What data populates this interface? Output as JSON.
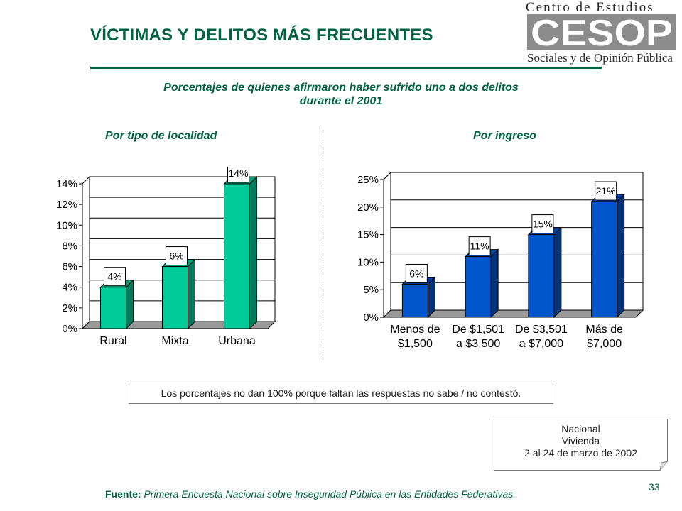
{
  "header": {
    "title": "VÍCTIMAS Y DELITOS MÁS FRECUENTES",
    "logo_top": "Centro de Estudios",
    "logo_mark": "CESOP",
    "logo_bottom": "Sociales y de Opinión Pública"
  },
  "subtitle_line1": "Porcentajes de quienes afirmaron haber sufrido uno a dos delitos",
  "subtitle_line2": "durante el 2001",
  "left_section_title": "Por tipo de localidad",
  "right_section_title": "Por ingreso",
  "chart_data": [
    {
      "type": "bar",
      "categories": [
        "Rural",
        "Mixta",
        "Urbana"
      ],
      "values": [
        4,
        6,
        14
      ],
      "data_labels": [
        "4%",
        "6%",
        "14%"
      ],
      "yticks": [
        "0%",
        "2%",
        "4%",
        "6%",
        "8%",
        "10%",
        "12%",
        "14%"
      ],
      "ylim": [
        0,
        14
      ],
      "grid": true,
      "color": "#00cc99"
    },
    {
      "type": "bar",
      "categories": [
        [
          "Menos de",
          "$1,500"
        ],
        [
          "De $1,501",
          "a $3,500"
        ],
        [
          "De $3,501",
          "a $7,000"
        ],
        [
          "Más de",
          "$7,000"
        ]
      ],
      "values": [
        6,
        11,
        15,
        21
      ],
      "data_labels": [
        "6%",
        "11%",
        "15%",
        "21%"
      ],
      "yticks": [
        "0%",
        "5%",
        "10%",
        "15%",
        "20%",
        "25%"
      ],
      "ylim": [
        0,
        25
      ],
      "grid": true,
      "color": "#0055cc"
    }
  ],
  "note": "Los porcentajes no dan 100% porque faltan las respuestas no sabe / no contestó.",
  "survey": {
    "line1": "Nacional",
    "line2": "Vivienda",
    "line3": "2 al 24 de marzo de 2002"
  },
  "source": {
    "label": "Fuente:",
    "text": "Primera Encuesta Nacional sobre Inseguridad Pública en las Entidades Federativas."
  },
  "page_number": "33"
}
